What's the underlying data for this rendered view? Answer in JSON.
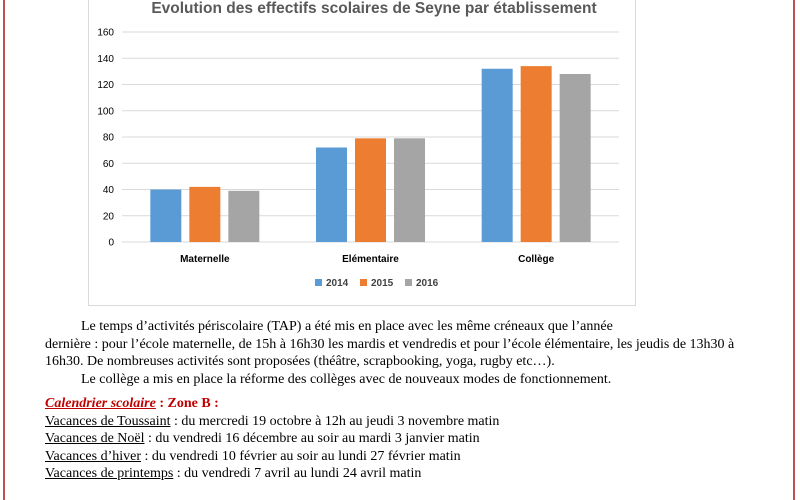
{
  "chart_data": {
    "type": "bar",
    "title": "Evolution des effectifs scolaires de Seyne par établissement",
    "categories": [
      "Maternelle",
      "Elémentaire",
      "Collège"
    ],
    "series": [
      {
        "name": "2014",
        "values": [
          40,
          72,
          132
        ],
        "color": "#5b9bd5"
      },
      {
        "name": "2015",
        "values": [
          42,
          79,
          134
        ],
        "color": "#ed7d31"
      },
      {
        "name": "2016",
        "values": [
          39,
          79,
          128
        ],
        "color": "#a5a5a5"
      }
    ],
    "ylim": [
      0,
      160
    ],
    "yticks": [
      0,
      20,
      40,
      60,
      80,
      100,
      120,
      140,
      160
    ],
    "grid": true,
    "legend_position": "bottom",
    "xlabel": "",
    "ylabel": ""
  },
  "text": {
    "para1_line1": "Le temps d’activités périscolaire (TAP) a été mis en place avec les même créneaux que l’année",
    "para1_rest": "dernière :  pour l’école maternelle, de 15h à 16h30 les mardis et vendredis et pour l’école élémentaire, les jeudis de 13h30 à 16h30. De nombreuses activités sont proposées (théâtre, scrapbooking, yoga, rugby etc…).",
    "para2": "Le collège a mis en place la réforme des collèges avec de nouveaux modes de fonctionnement."
  },
  "calendar": {
    "heading_italic": "Calendrier scolaire",
    "heading_rest": " : Zone B :",
    "items": [
      {
        "label": "Vacances de Toussaint",
        "text": " : du mercredi 19 octobre à 12h au jeudi 3 novembre matin"
      },
      {
        "label": "Vacances de Noël",
        "text": " : du vendredi 16 décembre au soir au mardi 3 janvier matin"
      },
      {
        "label": "Vacances d’hiver",
        "text": " : du vendredi 10 février au soir au lundi 27 février matin"
      },
      {
        "label": "Vacances de printemps",
        "text": " : du vendredi 7 avril au lundi 24 avril matin"
      }
    ]
  },
  "colors": {
    "frame_accent": "#c0504d",
    "heading_red": "#c00000",
    "gridline": "#d9d9d9"
  }
}
